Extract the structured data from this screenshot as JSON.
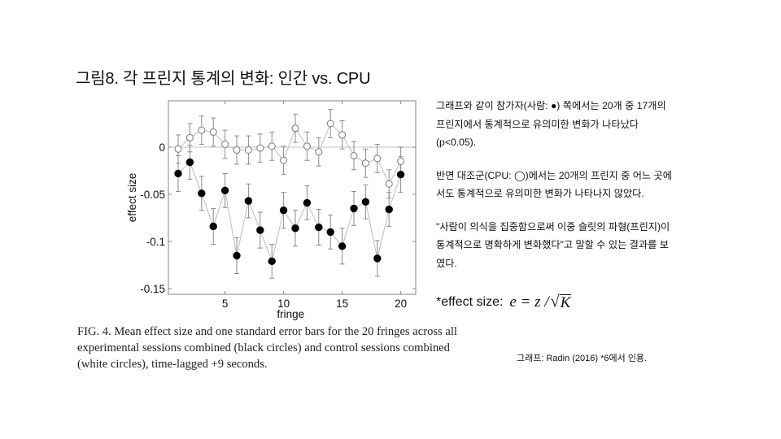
{
  "slide": {
    "title": "그림8. 각 프린지 통계의 변화: 인간 vs. CPU",
    "caption": "FIG. 4. Mean effect size and one standard error bars for the 20 fringes across all experimental sessions combined (black circles) and control sessions combined (white circles), time-lagged +9 seconds.",
    "notes": [
      "그래프와 같이 참가자(사람: ●) 쪽에서는 20개 중 17개의 프린지에서 통계적으로 유의미한 변화가 나타났다(p<0.05).",
      "반면 대조군(CPU: ◯)에서는 20개의 프린지 중 어느 곳에서도 통계적으로 유의미한 변화가 나타나지 않았다.",
      "\"사람이 의식을 집중함으로써 이중 슬릿의 파형(프린지)이 통계적으로 명확하게 변화했다\"고 말할 수 있는 결과를 보였다."
    ],
    "effect_size_label": "*effect size:",
    "formula": {
      "lhs": "e = z /",
      "radicand": "K"
    },
    "source": "그래프: Radin (2016) *6에서 인용."
  },
  "chart_data": {
    "type": "scatter",
    "title": "",
    "xlabel": "fringe",
    "ylabel": "effect size",
    "xlim": [
      0,
      21.3
    ],
    "ylim": [
      -0.156,
      0.048
    ],
    "xticks": [
      5,
      10,
      15,
      20
    ],
    "yticks": [
      0,
      -0.05,
      -0.1,
      -0.15
    ],
    "ytick_labels": [
      "0",
      "-0.05",
      "-0.1",
      "-0.15"
    ],
    "grid": false,
    "reference_line": 0,
    "x": [
      1,
      2,
      3,
      4,
      5,
      6,
      7,
      8,
      9,
      10,
      11,
      12,
      13,
      14,
      15,
      16,
      17,
      18,
      19,
      20
    ],
    "series": [
      {
        "name": "experimental sessions (black circles)",
        "marker": "filled",
        "color": "#000000",
        "values": [
          -0.028,
          -0.016,
          -0.049,
          -0.084,
          -0.046,
          -0.115,
          -0.057,
          -0.088,
          -0.121,
          -0.067,
          -0.086,
          -0.059,
          -0.085,
          -0.09,
          -0.105,
          -0.065,
          -0.058,
          -0.118,
          -0.066,
          -0.029
        ],
        "errors": [
          0.019,
          0.018,
          0.018,
          0.019,
          0.018,
          0.019,
          0.018,
          0.019,
          0.018,
          0.019,
          0.019,
          0.018,
          0.019,
          0.018,
          0.019,
          0.018,
          0.018,
          0.019,
          0.018,
          0.019
        ]
      },
      {
        "name": "control sessions (white circles)",
        "marker": "open",
        "color": "#ffffff",
        "values": [
          -0.002,
          0.01,
          0.018,
          0.016,
          0.003,
          -0.003,
          -0.003,
          -0.001,
          0.001,
          -0.014,
          0.02,
          0.001,
          -0.005,
          0.025,
          0.013,
          -0.009,
          -0.017,
          -0.012,
          -0.039,
          -0.015
        ],
        "errors": [
          0.015,
          0.015,
          0.015,
          0.015,
          0.015,
          0.015,
          0.015,
          0.015,
          0.015,
          0.015,
          0.015,
          0.015,
          0.015,
          0.015,
          0.015,
          0.015,
          0.015,
          0.015,
          0.015,
          0.015
        ]
      }
    ]
  }
}
